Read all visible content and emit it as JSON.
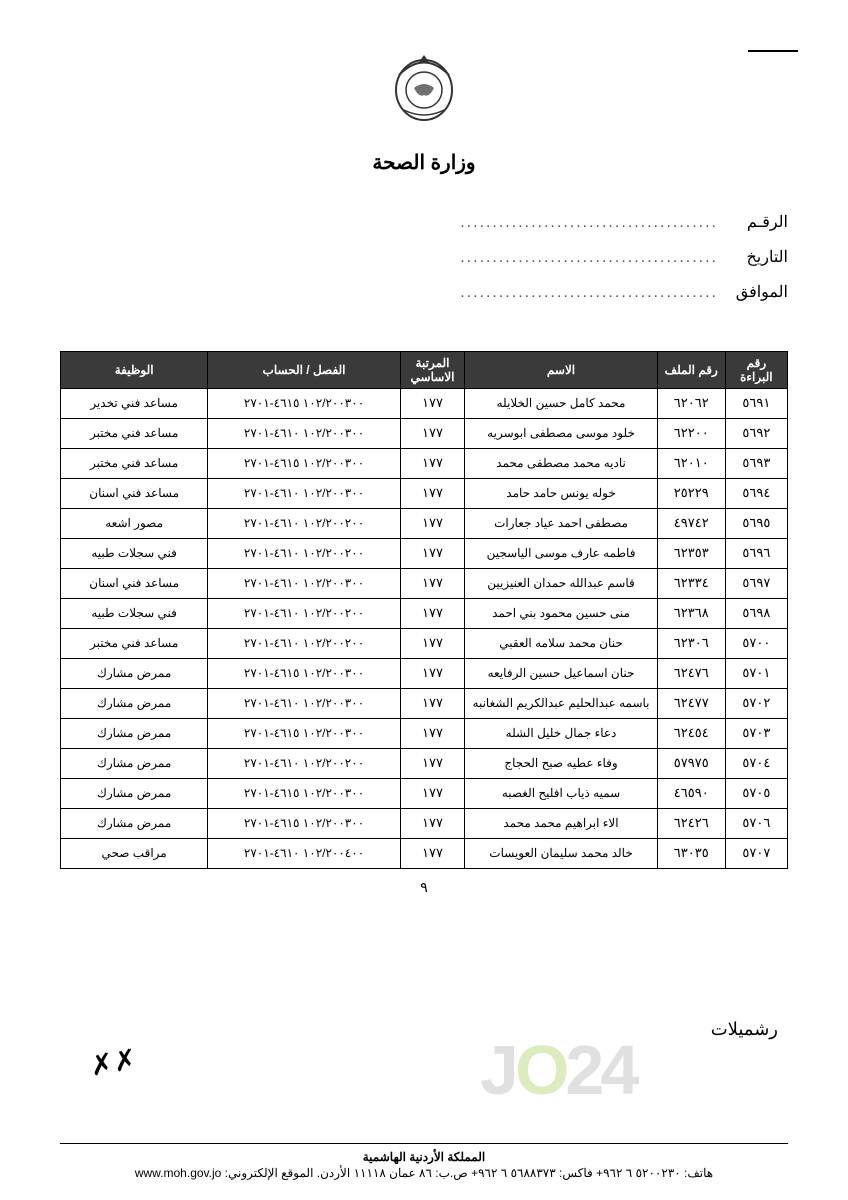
{
  "ministry": "وزارة الصحة",
  "headerFields": {
    "number": "الرقـم",
    "date": "التاريخ",
    "corresponding": "الموافق",
    "dots": "........................................"
  },
  "table": {
    "headers": [
      "رقم البراءة",
      "رقم الملف",
      "الاسم",
      "المرتبة الاساسي",
      "الفصل / الحساب",
      "الوظيفة"
    ],
    "rows": [
      [
        "٥٦٩١",
        "٦٢٠٦٢",
        "محمد كامل حسين الخلايله",
        "١٧٧",
        "١٠٢/٢٠٠٣٠٠ ٤٦١٥-٢٧٠١",
        "مساعد فني تخدير"
      ],
      [
        "٥٦٩٢",
        "٦٢٢٠٠",
        "خلود موسى مصطفى ابوسريه",
        "١٧٧",
        "١٠٢/٢٠٠٣٠٠ ٤٦١٠-٢٧٠١",
        "مساعد فني مختبر"
      ],
      [
        "٥٦٩٣",
        "٦٢٠١٠",
        "ناديه محمد مصطفى محمد",
        "١٧٧",
        "١٠٢/٢٠٠٣٠٠ ٤٦١٥-٢٧٠١",
        "مساعد فني مختبر"
      ],
      [
        "٥٦٩٤",
        "٢٥٢٢٩",
        "خوله يونس حامد حامد",
        "١٧٧",
        "١٠٢/٢٠٠٣٠٠ ٤٦١٠-٢٧٠١",
        "مساعد فني اسنان"
      ],
      [
        "٥٦٩٥",
        "٤٩٧٤٢",
        "مصطفى احمد عياد جعارات",
        "١٧٧",
        "١٠٢/٢٠٠٢٠٠ ٤٦١٠-٢٧٠١",
        "مصور اشعه"
      ],
      [
        "٥٦٩٦",
        "٦٢٣٥٣",
        "فاطمه عارف موسى الياسجين",
        "١٧٧",
        "١٠٢/٢٠٠٢٠٠ ٤٦١٠-٢٧٠١",
        "فني سجلات طبيه"
      ],
      [
        "٥٦٩٧",
        "٦٢٣٣٤",
        "قاسم عبدالله حمدان العنيزيين",
        "١٧٧",
        "١٠٢/٢٠٠٣٠٠ ٤٦١٠-٢٧٠١",
        "مساعد فني اسنان"
      ],
      [
        "٥٦٩٨",
        "٦٢٣٦٨",
        "منى حسين محمود بني احمد",
        "١٧٧",
        "١٠٢/٢٠٠٢٠٠ ٤٦١٠-٢٧٠١",
        "فني سجلات طبيه"
      ],
      [
        "٥٧٠٠",
        "٦٢٣٠٦",
        "حنان محمد سلامه العقبي",
        "١٧٧",
        "١٠٢/٢٠٠٢٠٠ ٤٦١٠-٢٧٠١",
        "مساعد فني مختبر"
      ],
      [
        "٥٧٠١",
        "٦٢٤٧٦",
        "حنان اسماعيل حسين الرفايعه",
        "١٧٧",
        "١٠٢/٢٠٠٣٠٠ ٤٦١٥-٢٧٠١",
        "ممرض مشارك"
      ],
      [
        "٥٧٠٢",
        "٦٢٤٧٧",
        "باسمه عبدالحليم عبدالكريم الشغانبه",
        "١٧٧",
        "١٠٢/٢٠٠٣٠٠ ٤٦١٠-٢٧٠١",
        "ممرض مشارك"
      ],
      [
        "٥٧٠٣",
        "٦٢٤٥٤",
        "دعاء جمال خليل الشله",
        "١٧٧",
        "١٠٢/٢٠٠٣٠٠ ٤٦١٥-٢٧٠١",
        "ممرض مشارك"
      ],
      [
        "٥٧٠٤",
        "٥٧٩٧٥",
        "وفاء عطيه صبح الحجاج",
        "١٧٧",
        "١٠٢/٢٠٠٢٠٠ ٤٦١٠-٢٧٠١",
        "ممرض مشارك"
      ],
      [
        "٥٧٠٥",
        "٤٦٥٩٠",
        "سميه ذياب افليح الغصبه",
        "١٧٧",
        "١٠٢/٢٠٠٣٠٠ ٤٦١٥-٢٧٠١",
        "ممرض مشارك"
      ],
      [
        "٥٧٠٦",
        "٦٢٤٢٦",
        "الاء ابراهيم محمد محمد",
        "١٧٧",
        "١٠٢/٢٠٠٣٠٠ ٤٦١٥-٢٧٠١",
        "ممرض مشارك"
      ],
      [
        "٥٧٠٧",
        "٦٣٠٣٥",
        "خالد محمد سليمان العويسات",
        "١٧٧",
        "١٠٢/٢٠٠٤٠٠ ٤٦١٠-٢٧٠١",
        "مراقب صحي"
      ]
    ]
  },
  "pageNumber": "٩",
  "footer": {
    "kingdom": "المملكة الأردنية الهاشمية",
    "contact": "هاتف: ٥٢٠٠٢٣٠ ٦ ٩٦٢+ فاكس: ٥٦٨٨٣٧٣ ٦ ٩٦٢+ ص.ب: ٨٦ عمان ١١١١٨ الأردن. الموقع الإلكتروني: www.moh.gov.jo"
  },
  "watermark": "JO24",
  "sideText": "رشميلات"
}
